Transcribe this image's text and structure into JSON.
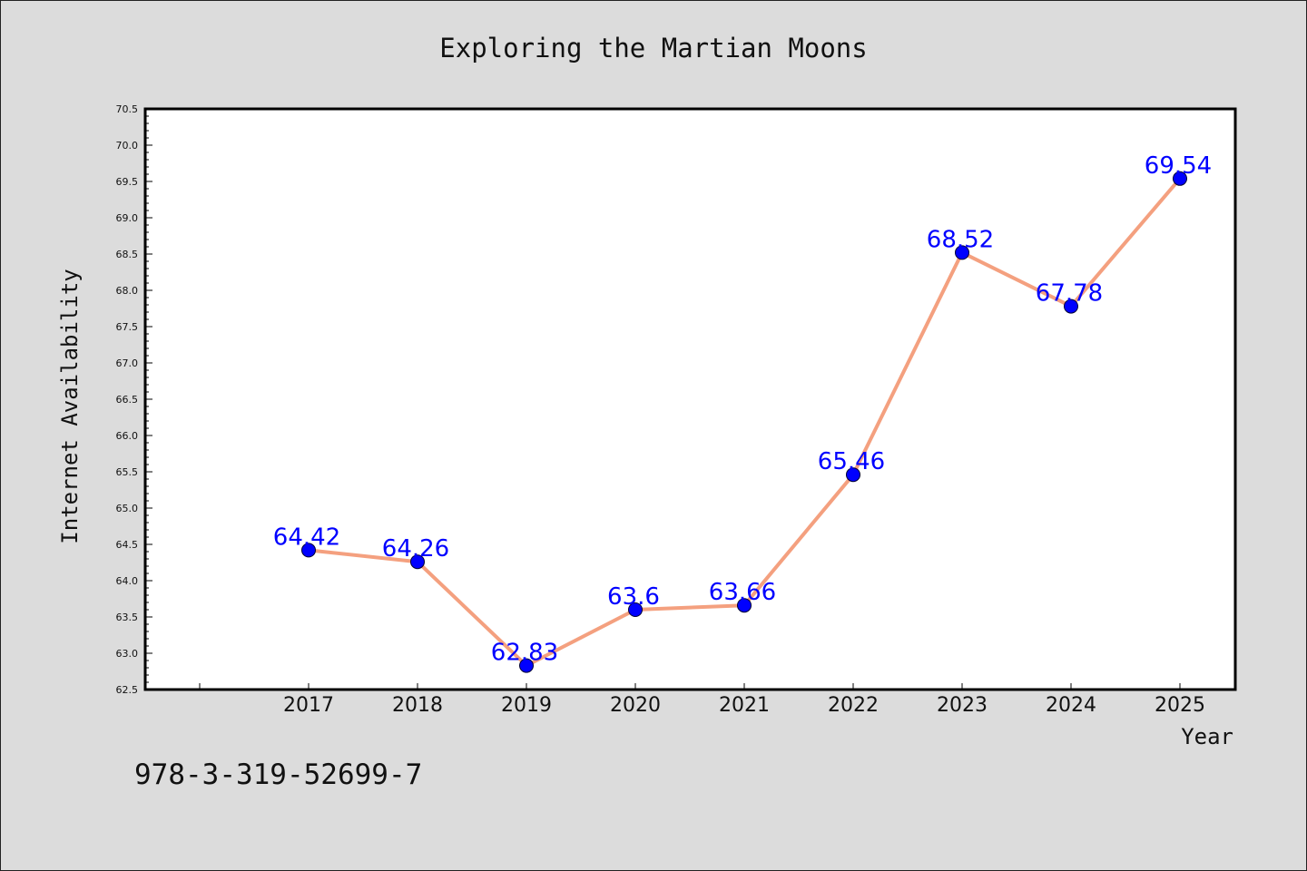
{
  "footer_code": "978-3-319-52699-7",
  "colors": {
    "background": "#dcdcdc",
    "plot_background": "#ffffff",
    "line": "#f4a07f",
    "marker": "#0000ff",
    "data_label": "#0000ff",
    "axis": "#000000"
  },
  "chart_data": {
    "type": "line",
    "title": "Exploring the Martian Moons",
    "xlabel": "Year",
    "ylabel": "Internet Availability",
    "categories": [
      "2017",
      "2018",
      "2019",
      "2020",
      "2021",
      "2022",
      "2023",
      "2024",
      "2025"
    ],
    "values": [
      64.42,
      64.26,
      62.83,
      63.6,
      63.66,
      65.46,
      68.52,
      67.78,
      69.54
    ],
    "data_labels": [
      "64.42",
      "64.26",
      "62.83",
      "63.6",
      "63.66",
      "65.46",
      "68.52",
      "67.78",
      "69.54"
    ],
    "ylim": [
      62.5,
      70.5
    ],
    "yticks": [
      "62.5",
      "63.0",
      "63.5",
      "64.0",
      "64.5",
      "65.0",
      "65.5",
      "66.0",
      "66.5",
      "67.0",
      "67.5",
      "68.0",
      "68.5",
      "69.0",
      "69.5",
      "70.0",
      "70.5"
    ],
    "grid": false,
    "legend": "none"
  }
}
